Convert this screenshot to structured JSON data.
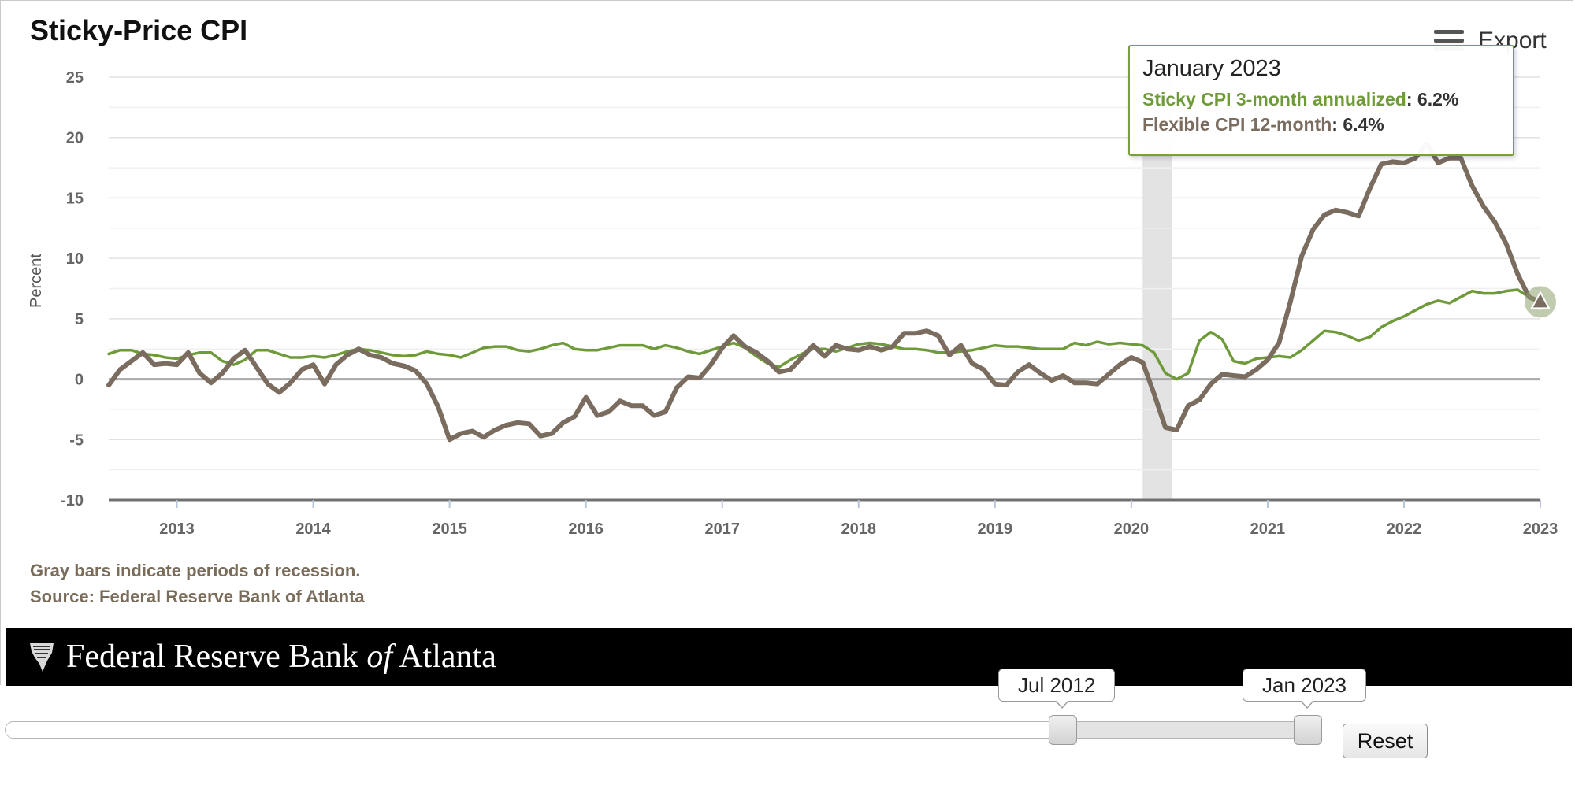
{
  "title": "Sticky-Price CPI",
  "export_label": "Export",
  "footnotes": {
    "recession": "Gray bars indicate periods of recession.",
    "source": "Source: Federal Reserve Bank of Atlanta"
  },
  "banner_text": {
    "pre": "Federal Reserve Bank ",
    "of": "of",
    "post": " Atlanta"
  },
  "slider": {
    "start_label": "Jul 2012",
    "end_label": "Jan 2023",
    "reset_label": "Reset"
  },
  "tooltip": {
    "date": "January 2023",
    "rows": [
      {
        "name": "Sticky CPI 3-month annualized",
        "value": "6.2%"
      },
      {
        "name": "Flexible CPI 12-month",
        "value": "6.4%"
      }
    ]
  },
  "colors": {
    "sticky": "#6f9a3a",
    "flexible": "#7a6c5f",
    "recession": "#e3e3e3",
    "tooltip_border": "#7aa03c"
  },
  "chart_data": {
    "type": "line",
    "ylabel": "Percent",
    "ylim": [
      -10,
      25
    ],
    "yticks": [
      -10,
      -5,
      0,
      5,
      10,
      15,
      20,
      25
    ],
    "xlim": [
      "2012-07",
      "2023-01"
    ],
    "xticks": [
      "2013",
      "2014",
      "2015",
      "2016",
      "2017",
      "2018",
      "2019",
      "2020",
      "2021",
      "2022",
      "2023"
    ],
    "grid": true,
    "recessions": [
      [
        "2020-02",
        "2020-04"
      ]
    ],
    "series": [
      {
        "name": "Sticky CPI 3-month annualized",
        "color": "#6f9a3a",
        "points": [
          [
            "2012-07",
            2.1
          ],
          [
            "2012-08",
            2.4
          ],
          [
            "2012-09",
            2.4
          ],
          [
            "2012-10",
            2.1
          ],
          [
            "2012-11",
            2.0
          ],
          [
            "2012-12",
            1.8
          ],
          [
            "2013-01",
            1.7
          ],
          [
            "2013-02",
            2.0
          ],
          [
            "2013-03",
            2.2
          ],
          [
            "2013-04",
            2.2
          ],
          [
            "2013-05",
            1.5
          ],
          [
            "2013-06",
            1.2
          ],
          [
            "2013-07",
            1.6
          ],
          [
            "2013-08",
            2.4
          ],
          [
            "2013-09",
            2.4
          ],
          [
            "2013-10",
            2.1
          ],
          [
            "2013-11",
            1.8
          ],
          [
            "2013-12",
            1.8
          ],
          [
            "2014-01",
            1.9
          ],
          [
            "2014-02",
            1.8
          ],
          [
            "2014-03",
            2.0
          ],
          [
            "2014-04",
            2.3
          ],
          [
            "2014-05",
            2.5
          ],
          [
            "2014-06",
            2.4
          ],
          [
            "2014-07",
            2.2
          ],
          [
            "2014-08",
            2.0
          ],
          [
            "2014-09",
            1.9
          ],
          [
            "2014-10",
            2.0
          ],
          [
            "2014-11",
            2.3
          ],
          [
            "2014-12",
            2.1
          ],
          [
            "2015-01",
            2.0
          ],
          [
            "2015-02",
            1.8
          ],
          [
            "2015-03",
            2.2
          ],
          [
            "2015-04",
            2.6
          ],
          [
            "2015-05",
            2.7
          ],
          [
            "2015-06",
            2.7
          ],
          [
            "2015-07",
            2.4
          ],
          [
            "2015-08",
            2.3
          ],
          [
            "2015-09",
            2.5
          ],
          [
            "2015-10",
            2.8
          ],
          [
            "2015-11",
            3.0
          ],
          [
            "2015-12",
            2.5
          ],
          [
            "2016-01",
            2.4
          ],
          [
            "2016-02",
            2.4
          ],
          [
            "2016-03",
            2.6
          ],
          [
            "2016-04",
            2.8
          ],
          [
            "2016-05",
            2.8
          ],
          [
            "2016-06",
            2.8
          ],
          [
            "2016-07",
            2.5
          ],
          [
            "2016-08",
            2.8
          ],
          [
            "2016-09",
            2.6
          ],
          [
            "2016-10",
            2.3
          ],
          [
            "2016-11",
            2.1
          ],
          [
            "2016-12",
            2.4
          ],
          [
            "2017-01",
            2.7
          ],
          [
            "2017-02",
            3.0
          ],
          [
            "2017-03",
            2.6
          ],
          [
            "2017-04",
            1.9
          ],
          [
            "2017-05",
            1.3
          ],
          [
            "2017-06",
            1.0
          ],
          [
            "2017-07",
            1.6
          ],
          [
            "2017-08",
            2.1
          ],
          [
            "2017-09",
            2.5
          ],
          [
            "2017-10",
            2.5
          ],
          [
            "2017-11",
            2.3
          ],
          [
            "2017-12",
            2.6
          ],
          [
            "2018-01",
            2.9
          ],
          [
            "2018-02",
            3.0
          ],
          [
            "2018-03",
            2.9
          ],
          [
            "2018-04",
            2.7
          ],
          [
            "2018-05",
            2.5
          ],
          [
            "2018-06",
            2.5
          ],
          [
            "2018-07",
            2.4
          ],
          [
            "2018-08",
            2.2
          ],
          [
            "2018-09",
            2.2
          ],
          [
            "2018-10",
            2.3
          ],
          [
            "2018-11",
            2.4
          ],
          [
            "2018-12",
            2.6
          ],
          [
            "2019-01",
            2.8
          ],
          [
            "2019-02",
            2.7
          ],
          [
            "2019-03",
            2.7
          ],
          [
            "2019-04",
            2.6
          ],
          [
            "2019-05",
            2.5
          ],
          [
            "2019-06",
            2.5
          ],
          [
            "2019-07",
            2.5
          ],
          [
            "2019-08",
            3.0
          ],
          [
            "2019-09",
            2.8
          ],
          [
            "2019-10",
            3.1
          ],
          [
            "2019-11",
            2.9
          ],
          [
            "2019-12",
            3.0
          ],
          [
            "2020-01",
            2.9
          ],
          [
            "2020-02",
            2.8
          ],
          [
            "2020-03",
            2.2
          ],
          [
            "2020-04",
            0.5
          ],
          [
            "2020-05",
            0.0
          ],
          [
            "2020-06",
            0.5
          ],
          [
            "2020-07",
            3.2
          ],
          [
            "2020-08",
            3.9
          ],
          [
            "2020-09",
            3.3
          ],
          [
            "2020-10",
            1.5
          ],
          [
            "2020-11",
            1.3
          ],
          [
            "2020-12",
            1.7
          ],
          [
            "2021-01",
            1.8
          ],
          [
            "2021-02",
            1.9
          ],
          [
            "2021-03",
            1.8
          ],
          [
            "2021-04",
            2.4
          ],
          [
            "2021-05",
            3.2
          ],
          [
            "2021-06",
            4.0
          ],
          [
            "2021-07",
            3.9
          ],
          [
            "2021-08",
            3.6
          ],
          [
            "2021-09",
            3.2
          ],
          [
            "2021-10",
            3.5
          ],
          [
            "2021-11",
            4.3
          ],
          [
            "2021-12",
            4.8
          ],
          [
            "2022-01",
            5.2
          ],
          [
            "2022-02",
            5.7
          ],
          [
            "2022-03",
            6.2
          ],
          [
            "2022-04",
            6.5
          ],
          [
            "2022-05",
            6.3
          ],
          [
            "2022-06",
            6.8
          ],
          [
            "2022-07",
            7.3
          ],
          [
            "2022-08",
            7.1
          ],
          [
            "2022-09",
            7.1
          ],
          [
            "2022-10",
            7.3
          ],
          [
            "2022-11",
            7.4
          ],
          [
            "2022-12",
            6.8
          ],
          [
            "2023-01",
            6.2
          ]
        ]
      },
      {
        "name": "Flexible CPI 12-month",
        "color": "#7a6c5f",
        "points": [
          [
            "2012-07",
            -0.5
          ],
          [
            "2012-08",
            0.8
          ],
          [
            "2012-09",
            1.5
          ],
          [
            "2012-10",
            2.2
          ],
          [
            "2012-11",
            1.2
          ],
          [
            "2012-12",
            1.3
          ],
          [
            "2013-01",
            1.2
          ],
          [
            "2013-02",
            2.2
          ],
          [
            "2013-03",
            0.5
          ],
          [
            "2013-04",
            -0.3
          ],
          [
            "2013-05",
            0.5
          ],
          [
            "2013-06",
            1.7
          ],
          [
            "2013-07",
            2.4
          ],
          [
            "2013-08",
            1.0
          ],
          [
            "2013-09",
            -0.4
          ],
          [
            "2013-10",
            -1.1
          ],
          [
            "2013-11",
            -0.3
          ],
          [
            "2013-12",
            0.8
          ],
          [
            "2014-01",
            1.2
          ],
          [
            "2014-02",
            -0.4
          ],
          [
            "2014-03",
            1.2
          ],
          [
            "2014-04",
            2.0
          ],
          [
            "2014-05",
            2.5
          ],
          [
            "2014-06",
            2.0
          ],
          [
            "2014-07",
            1.8
          ],
          [
            "2014-08",
            1.3
          ],
          [
            "2014-09",
            1.1
          ],
          [
            "2014-10",
            0.7
          ],
          [
            "2014-11",
            -0.4
          ],
          [
            "2014-12",
            -2.3
          ],
          [
            "2015-01",
            -5.0
          ],
          [
            "2015-02",
            -4.5
          ],
          [
            "2015-03",
            -4.3
          ],
          [
            "2015-04",
            -4.8
          ],
          [
            "2015-05",
            -4.2
          ],
          [
            "2015-06",
            -3.8
          ],
          [
            "2015-07",
            -3.6
          ],
          [
            "2015-08",
            -3.7
          ],
          [
            "2015-09",
            -4.7
          ],
          [
            "2015-10",
            -4.5
          ],
          [
            "2015-11",
            -3.6
          ],
          [
            "2015-12",
            -3.1
          ],
          [
            "2016-01",
            -1.5
          ],
          [
            "2016-02",
            -3.0
          ],
          [
            "2016-03",
            -2.7
          ],
          [
            "2016-04",
            -1.8
          ],
          [
            "2016-05",
            -2.2
          ],
          [
            "2016-06",
            -2.2
          ],
          [
            "2016-07",
            -3.0
          ],
          [
            "2016-08",
            -2.7
          ],
          [
            "2016-09",
            -0.7
          ],
          [
            "2016-10",
            0.2
          ],
          [
            "2016-11",
            0.1
          ],
          [
            "2016-12",
            1.2
          ],
          [
            "2017-01",
            2.6
          ],
          [
            "2017-02",
            3.6
          ],
          [
            "2017-03",
            2.7
          ],
          [
            "2017-04",
            2.2
          ],
          [
            "2017-05",
            1.5
          ],
          [
            "2017-06",
            0.6
          ],
          [
            "2017-07",
            0.8
          ],
          [
            "2017-08",
            1.8
          ],
          [
            "2017-09",
            2.8
          ],
          [
            "2017-10",
            1.9
          ],
          [
            "2017-11",
            2.8
          ],
          [
            "2017-12",
            2.5
          ],
          [
            "2018-01",
            2.4
          ],
          [
            "2018-02",
            2.7
          ],
          [
            "2018-03",
            2.4
          ],
          [
            "2018-04",
            2.7
          ],
          [
            "2018-05",
            3.8
          ],
          [
            "2018-06",
            3.8
          ],
          [
            "2018-07",
            4.0
          ],
          [
            "2018-08",
            3.6
          ],
          [
            "2018-09",
            2.0
          ],
          [
            "2018-10",
            2.8
          ],
          [
            "2018-11",
            1.3
          ],
          [
            "2018-12",
            0.8
          ],
          [
            "2019-01",
            -0.4
          ],
          [
            "2019-02",
            -0.5
          ],
          [
            "2019-03",
            0.6
          ],
          [
            "2019-04",
            1.2
          ],
          [
            "2019-05",
            0.5
          ],
          [
            "2019-06",
            -0.1
          ],
          [
            "2019-07",
            0.3
          ],
          [
            "2019-08",
            -0.3
          ],
          [
            "2019-09",
            -0.3
          ],
          [
            "2019-10",
            -0.4
          ],
          [
            "2019-11",
            0.4
          ],
          [
            "2019-12",
            1.2
          ],
          [
            "2020-01",
            1.8
          ],
          [
            "2020-02",
            1.4
          ],
          [
            "2020-03",
            -1.2
          ],
          [
            "2020-04",
            -4.0
          ],
          [
            "2020-05",
            -4.2
          ],
          [
            "2020-06",
            -2.2
          ],
          [
            "2020-07",
            -1.7
          ],
          [
            "2020-08",
            -0.4
          ],
          [
            "2020-09",
            0.4
          ],
          [
            "2020-10",
            0.3
          ],
          [
            "2020-11",
            0.2
          ],
          [
            "2020-12",
            0.8
          ],
          [
            "2021-01",
            1.6
          ],
          [
            "2021-02",
            3.0
          ],
          [
            "2021-03",
            6.4
          ],
          [
            "2021-04",
            10.2
          ],
          [
            "2021-05",
            12.4
          ],
          [
            "2021-06",
            13.6
          ],
          [
            "2021-07",
            14.0
          ],
          [
            "2021-08",
            13.8
          ],
          [
            "2021-09",
            13.5
          ],
          [
            "2021-10",
            15.8
          ],
          [
            "2021-11",
            17.8
          ],
          [
            "2021-12",
            18.0
          ],
          [
            "2022-01",
            17.9
          ],
          [
            "2022-02",
            18.3
          ],
          [
            "2022-03",
            19.5
          ],
          [
            "2022-04",
            17.9
          ],
          [
            "2022-05",
            18.3
          ],
          [
            "2022-06",
            18.3
          ],
          [
            "2022-07",
            16.0
          ],
          [
            "2022-08",
            14.3
          ],
          [
            "2022-09",
            13.0
          ],
          [
            "2022-10",
            11.2
          ],
          [
            "2022-11",
            8.7
          ],
          [
            "2022-12",
            6.8
          ],
          [
            "2023-01",
            6.4
          ]
        ]
      }
    ]
  }
}
